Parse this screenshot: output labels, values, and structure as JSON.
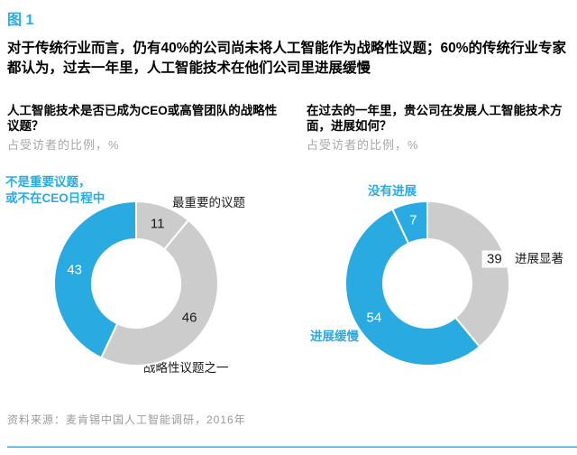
{
  "figure_label": "图 1",
  "headline": "对于传统行业而言，仍有40%的公司尚未将人工智能作为战略性议题；60%的传统行业专家都认为，过去一年里，人工智能技术在他们公司里进展缓慢",
  "footer": {
    "source": "资料来源：麦肯锡中国人工智能调研，2016年"
  },
  "colors": {
    "accent_blue": "#29abe2",
    "segment_gray": "#cccccc",
    "label_dark": "#1a1a1a",
    "subtitle_gray": "#a8a8a8",
    "bottom_rule_blue": "#2fb3ec"
  },
  "chart_data": [
    {
      "type": "pie",
      "donut": true,
      "title": "人工智能技术是否已成为CEO或高管团队的战略性议题？",
      "subtitle": "占受访者的比例，%",
      "start_angle_deg": 0,
      "segments": [
        {
          "name": "最重要的议题",
          "value": 11,
          "color": "#cccccc",
          "value_color": "#1a1a1a"
        },
        {
          "name": "战略性议题之一",
          "value": 46,
          "color": "#cccccc",
          "value_color": "#1a1a1a"
        },
        {
          "name": "不是重要议题，或不在CEO日程中",
          "value": 43,
          "color": "#29abe2",
          "value_color": "#ffffff"
        }
      ],
      "annotations": {
        "callout": "不是重要议题，\n或不在CEO日程中",
        "top": "最重要的议题",
        "bottom": "战略性议题之一"
      }
    },
    {
      "type": "pie",
      "donut": true,
      "title": "在过去的一年里，贵公司在发展人工智能技术方面，进展如何？",
      "subtitle": "占受访者的比例，%",
      "start_angle_deg": 0,
      "segments": [
        {
          "name": "进展显著",
          "value": 39,
          "color": "#cccccc",
          "value_color": "#1a1a1a",
          "label_r": 79,
          "label_bg": "#ffffff"
        },
        {
          "name": "进展缓慢",
          "value": 54,
          "color": "#29abe2",
          "value_color": "#ffffff"
        },
        {
          "name": "没有进展",
          "value": 7,
          "color": "#29abe2",
          "value_color": "#ffffff",
          "label_r": 72
        }
      ],
      "annotations": {
        "callout": "没有进展",
        "left": "进展缓慢",
        "right": "进展显著"
      }
    }
  ]
}
